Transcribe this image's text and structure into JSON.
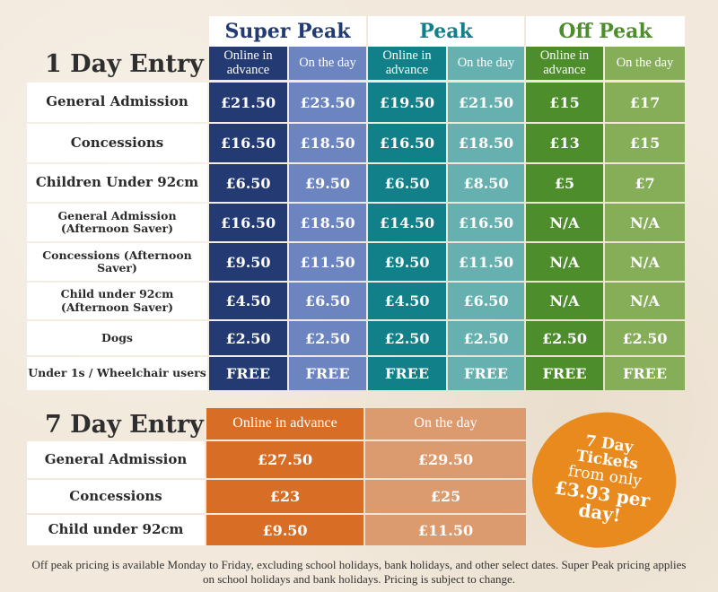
{
  "one_day": {
    "title": "1 Day Entry",
    "groups": [
      {
        "name": "Super Peak",
        "color": "#233a73"
      },
      {
        "name": "Peak",
        "color": "#118088"
      },
      {
        "name": "Off Peak",
        "color": "#4e8d2c"
      }
    ],
    "subheads": [
      "Online in advance",
      "On the day",
      "Online in advance",
      "On the day",
      "Online in advance",
      "On the day"
    ],
    "rows": [
      {
        "label": "General Admission",
        "values": [
          "£21.50",
          "£23.50",
          "£19.50",
          "£21.50",
          "£15",
          "£17"
        ]
      },
      {
        "label": "Concessions",
        "values": [
          "£16.50",
          "£18.50",
          "£16.50",
          "£18.50",
          "£13",
          "£15"
        ]
      },
      {
        "label": "Children Under 92cm",
        "values": [
          "£6.50",
          "£9.50",
          "£6.50",
          "£8.50",
          "£5",
          "£7"
        ]
      },
      {
        "label": "General Admission (Afternoon Saver)",
        "values": [
          "£16.50",
          "£18.50",
          "£14.50",
          "£16.50",
          "N/A",
          "N/A"
        ]
      },
      {
        "label": "Concessions (Afternoon Saver)",
        "values": [
          "£9.50",
          "£11.50",
          "£9.50",
          "£11.50",
          "N/A",
          "N/A"
        ]
      },
      {
        "label": "Child under 92cm (Afternoon Saver)",
        "values": [
          "£4.50",
          "£6.50",
          "£4.50",
          "£6.50",
          "N/A",
          "N/A"
        ]
      },
      {
        "label": "Dogs",
        "values": [
          "£2.50",
          "£2.50",
          "£2.50",
          "£2.50",
          "£2.50",
          "£2.50"
        ]
      },
      {
        "label": "Under 1s / Wheelchair users",
        "values": [
          "FREE",
          "FREE",
          "FREE",
          "FREE",
          "FREE",
          "FREE"
        ]
      }
    ]
  },
  "seven_day": {
    "title": "7 Day Entry",
    "subheads": [
      "Online in advance",
      "On the day"
    ],
    "rows": [
      {
        "label": "General Admission",
        "values": [
          "£27.50",
          "£29.50"
        ]
      },
      {
        "label": "Concessions",
        "values": [
          "£23",
          "£25"
        ]
      },
      {
        "label": "Child under 92cm",
        "values": [
          "£9.50",
          "£11.50"
        ]
      }
    ]
  },
  "badge": {
    "line1": "7 Day",
    "line2": "Tickets",
    "line3": "from only",
    "line4": "£3.93 per",
    "line5": "day!",
    "color": "#e88a1e"
  },
  "footnote": "Off peak pricing is available Monday to Friday, excluding school holidays, bank holidays, and other select dates. Super Peak pricing applies on school holidays and bank holidays. Pricing is subject to change."
}
